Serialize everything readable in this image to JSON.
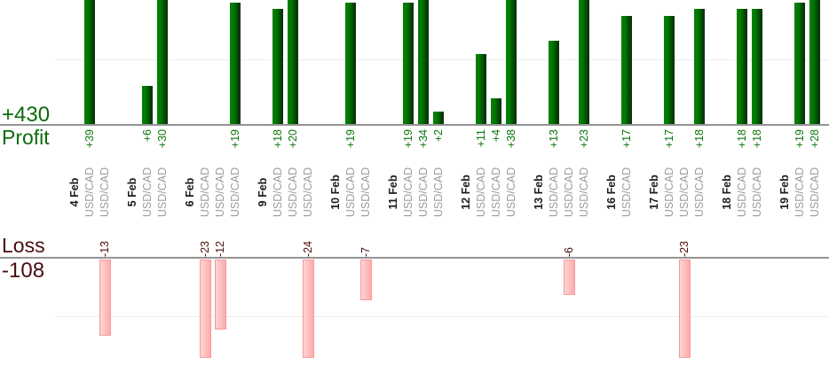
{
  "profit_section": {
    "total_label": "+430",
    "axis_label": "Profit"
  },
  "loss_section": {
    "total_label": "-108",
    "axis_label": "Loss"
  },
  "colors": {
    "profit_bar_bright": "#028202",
    "profit_bar_dark": "#0a2f0a",
    "profit_text": "#0a770a",
    "profit_total_text": "#0b6b0b",
    "loss_bar_fill": "#ffc2c2",
    "loss_bar_border": "#f49b9b",
    "loss_text": "#4a0d0d",
    "date_text": "#1c1c1c",
    "pair_text": "#9c9c9c",
    "axis_line": "#949494",
    "gridline": "#ededed"
  },
  "chart_data": {
    "type": "bar",
    "orientation": "vertical",
    "panels": {
      "profit": {
        "axis_label": "Profit",
        "total": 430,
        "total_label": "+430",
        "gridline_values": [
          10
        ],
        "bars_clipped_above": 19
      },
      "loss": {
        "axis_label": "Loss",
        "total": -108,
        "total_label": "-108",
        "gridline_values": [
          -10
        ],
        "bars_clipped_below": -17
      }
    },
    "categories": [
      "4 Feb",
      "5 Feb",
      "6 Feb",
      "9 Feb",
      "10 Feb",
      "11 Feb",
      "12 Feb",
      "13 Feb",
      "16 Feb",
      "17 Feb",
      "18 Feb",
      "19 Feb"
    ],
    "groups": [
      {
        "date": "4 Feb",
        "trades": [
          {
            "pair": "USD/CAD",
            "value": 39,
            "label": "+39"
          },
          {
            "pair": "USD/CAD",
            "value": -13,
            "label": "-13"
          }
        ]
      },
      {
        "date": "5 Feb",
        "trades": [
          {
            "pair": "USD/CAD",
            "value": 6,
            "label": "+6"
          },
          {
            "pair": "USD/CAD",
            "value": 30,
            "label": "+30"
          }
        ]
      },
      {
        "date": "6 Feb",
        "trades": [
          {
            "pair": "USD/CAD",
            "value": -23,
            "label": "-23"
          },
          {
            "pair": "USD/CAD",
            "value": -12,
            "label": "-12"
          },
          {
            "pair": "USD/CAD",
            "value": 19,
            "label": "+19"
          }
        ]
      },
      {
        "date": "9 Feb",
        "trades": [
          {
            "pair": "USD/CAD",
            "value": 18,
            "label": "+18"
          },
          {
            "pair": "USD/CAD",
            "value": 20,
            "label": "+20"
          },
          {
            "pair": "USD/CAD",
            "value": -24,
            "label": "-24"
          }
        ]
      },
      {
        "date": "10 Feb",
        "trades": [
          {
            "pair": "USD/CAD",
            "value": 19,
            "label": "+19"
          },
          {
            "pair": "USD/CAD",
            "value": -7,
            "label": "-7"
          }
        ]
      },
      {
        "date": "11 Feb",
        "trades": [
          {
            "pair": "USD/CAD",
            "value": 19,
            "label": "+19"
          },
          {
            "pair": "USD/CAD",
            "value": 34,
            "label": "+34"
          },
          {
            "pair": "USD/CAD",
            "value": 2,
            "label": "+2"
          }
        ]
      },
      {
        "date": "12 Feb",
        "trades": [
          {
            "pair": "USD/CAD",
            "value": 11,
            "label": "+11"
          },
          {
            "pair": "USD/CAD",
            "value": 4,
            "label": "+4"
          },
          {
            "pair": "USD/CAD",
            "value": 38,
            "label": "+38"
          }
        ]
      },
      {
        "date": "13 Feb",
        "trades": [
          {
            "pair": "USD/CAD",
            "value": 13,
            "label": "+13"
          },
          {
            "pair": "USD/CAD",
            "value": -6,
            "label": "-6"
          },
          {
            "pair": "USD/CAD",
            "value": 23,
            "label": "+23"
          }
        ]
      },
      {
        "date": "16 Feb",
        "trades": [
          {
            "pair": "USD/CAD",
            "value": 17,
            "label": "+17"
          }
        ]
      },
      {
        "date": "17 Feb",
        "trades": [
          {
            "pair": "USD/CAD",
            "value": 17,
            "label": "+17"
          },
          {
            "pair": "USD/CAD",
            "value": -23,
            "label": "-23"
          },
          {
            "pair": "USD/CAD",
            "value": 18,
            "label": "+18"
          }
        ]
      },
      {
        "date": "18 Feb",
        "trades": [
          {
            "pair": "USD/CAD",
            "value": 18,
            "label": "+18"
          },
          {
            "pair": "USD/CAD",
            "value": 18,
            "label": "+18"
          }
        ]
      },
      {
        "date": "19 Feb",
        "trades": [
          {
            "pair": "USD/CAD",
            "value": 19,
            "label": "+19"
          },
          {
            "pair": "USD/CAD",
            "value": 28,
            "label": "+28"
          }
        ]
      }
    ]
  }
}
